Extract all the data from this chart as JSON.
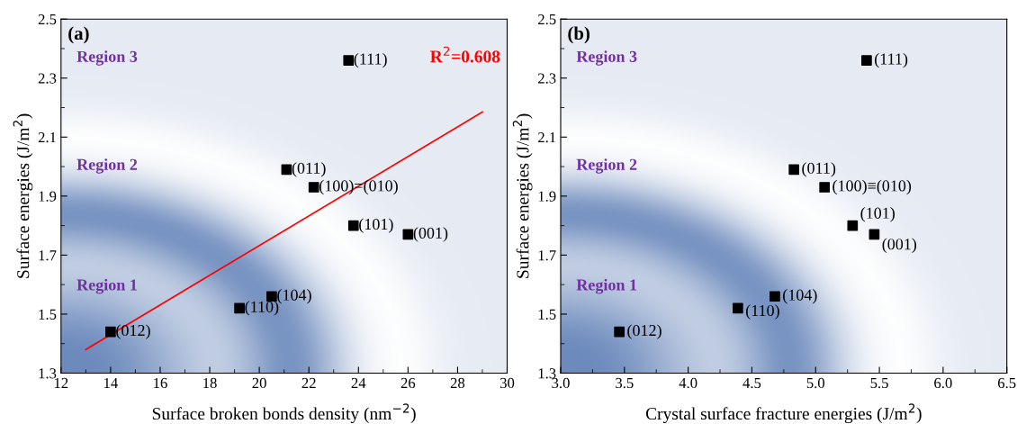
{
  "chart_data": [
    {
      "type": "scatter",
      "xlabel": "Surface broken bonds density (nm$^{−2}$)",
      "ylabel": "Surface energies (J/m$^{2}$)",
      "xlim": [
        12,
        30
      ],
      "xticks": [
        12,
        14,
        16,
        18,
        20,
        22,
        24,
        26,
        28,
        30
      ],
      "ylim": [
        1.3,
        2.5
      ],
      "yticks": [
        1.3,
        1.5,
        1.7,
        1.9,
        2.1,
        2.3,
        2.5
      ],
      "grid": false,
      "series": [
        {
          "marker": "square",
          "color": "#000000",
          "x": [
            23.6,
            21.1,
            22.2,
            23.8,
            26.0,
            20.5,
            19.2,
            14.0
          ],
          "values": [
            2.36,
            1.99,
            1.93,
            1.8,
            1.77,
            1.56,
            1.52,
            1.44
          ]
        },
        {
          "type": "line",
          "color": "#ff0000",
          "x": [
            13,
            29
          ],
          "values": [
            1.38,
            2.185
          ]
        }
      ],
      "annotations": [
        "(a)",
        "Region 3",
        "Region 2",
        "Region 1",
        "R$^{2}$=0.608",
        {
          "text": "(111)",
          "x": 23.6,
          "y": 2.36
        },
        {
          "text": "(011)",
          "x": 21.1,
          "y": 1.99
        },
        {
          "text": "(100)=(010)",
          "x": 22.2,
          "y": 1.93
        },
        {
          "text": "(101)",
          "x": 23.8,
          "y": 1.8
        },
        {
          "text": "(001)",
          "x": 26.0,
          "y": 1.77
        },
        {
          "text": "(104)",
          "x": 20.5,
          "y": 1.56
        },
        {
          "text": "(110)",
          "x": 19.2,
          "y": 1.52
        },
        {
          "text": "(012)",
          "x": 14.0,
          "y": 1.44
        }
      ]
    },
    {
      "type": "scatter",
      "xlabel": "Crystal surface fracture energies (J/m$^{2}$)",
      "ylabel": "Surface energies (J/m$^{2}$)",
      "xlim": [
        3.0,
        6.5
      ],
      "xticks": [
        {
          "value": 3.0,
          "label": "3.0"
        },
        3.5,
        {
          "value": 4.0,
          "label": "4.0"
        },
        4.5,
        {
          "value": 5.0,
          "label": "5.0"
        },
        5.5,
        {
          "value": 6.0,
          "label": "6.0"
        },
        6.5
      ],
      "ylim": [
        1.3,
        2.5
      ],
      "yticks": [
        1.3,
        1.5,
        1.7,
        1.9,
        2.1,
        2.3,
        2.5
      ],
      "grid": false,
      "series": [
        {
          "marker": "square",
          "color": "#000000",
          "x": [
            5.4,
            4.83,
            5.07,
            5.29,
            5.46,
            4.68,
            4.39,
            3.46
          ],
          "values": [
            2.36,
            1.99,
            1.93,
            1.8,
            1.77,
            1.56,
            1.52,
            1.44
          ]
        }
      ],
      "annotations": [
        "(b)",
        "Region 3",
        "Region 2",
        "Region 1",
        {
          "text": "(111)",
          "x": 5.4,
          "y": 2.36
        },
        {
          "text": "(011)",
          "x": 4.83,
          "y": 1.99
        },
        {
          "text": "(100)≡(010)",
          "x": 5.07,
          "y": 1.93
        },
        {
          "text": "(101)",
          "x": 5.29,
          "y": 1.8
        },
        {
          "text": "(001)",
          "x": 5.46,
          "y": 1.77
        },
        {
          "text": "(104)",
          "x": 4.68,
          "y": 1.56
        },
        {
          "text": "(110)",
          "x": 4.39,
          "y": 1.52
        },
        {
          "text": "(012)",
          "x": 3.46,
          "y": 1.44
        }
      ]
    }
  ]
}
